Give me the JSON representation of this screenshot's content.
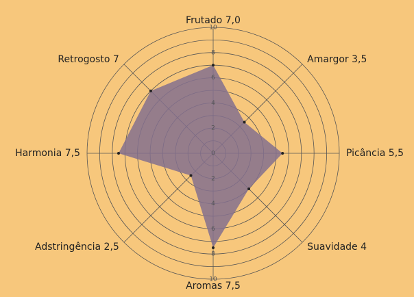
{
  "chart_data": {
    "type": "radar",
    "categories": [
      "Frutado",
      "Amargor",
      "Picância",
      "Suavidade",
      "Aromas",
      "Adstringência",
      "Harmonia",
      "Retrogosto"
    ],
    "values": [
      7,
      3.5,
      5.5,
      4,
      7.5,
      2.5,
      7.5,
      7
    ],
    "value_labels": [
      "7,0",
      "3,5",
      "5,5",
      "4",
      "7,5",
      "2,5",
      "7,5",
      "7"
    ],
    "color": "#84708e",
    "rlim": [
      0,
      10
    ],
    "rticks": [
      0,
      2,
      4,
      6,
      8,
      10
    ],
    "rings": [
      1,
      2,
      3,
      4,
      5,
      6,
      7,
      8,
      9,
      10
    ]
  }
}
